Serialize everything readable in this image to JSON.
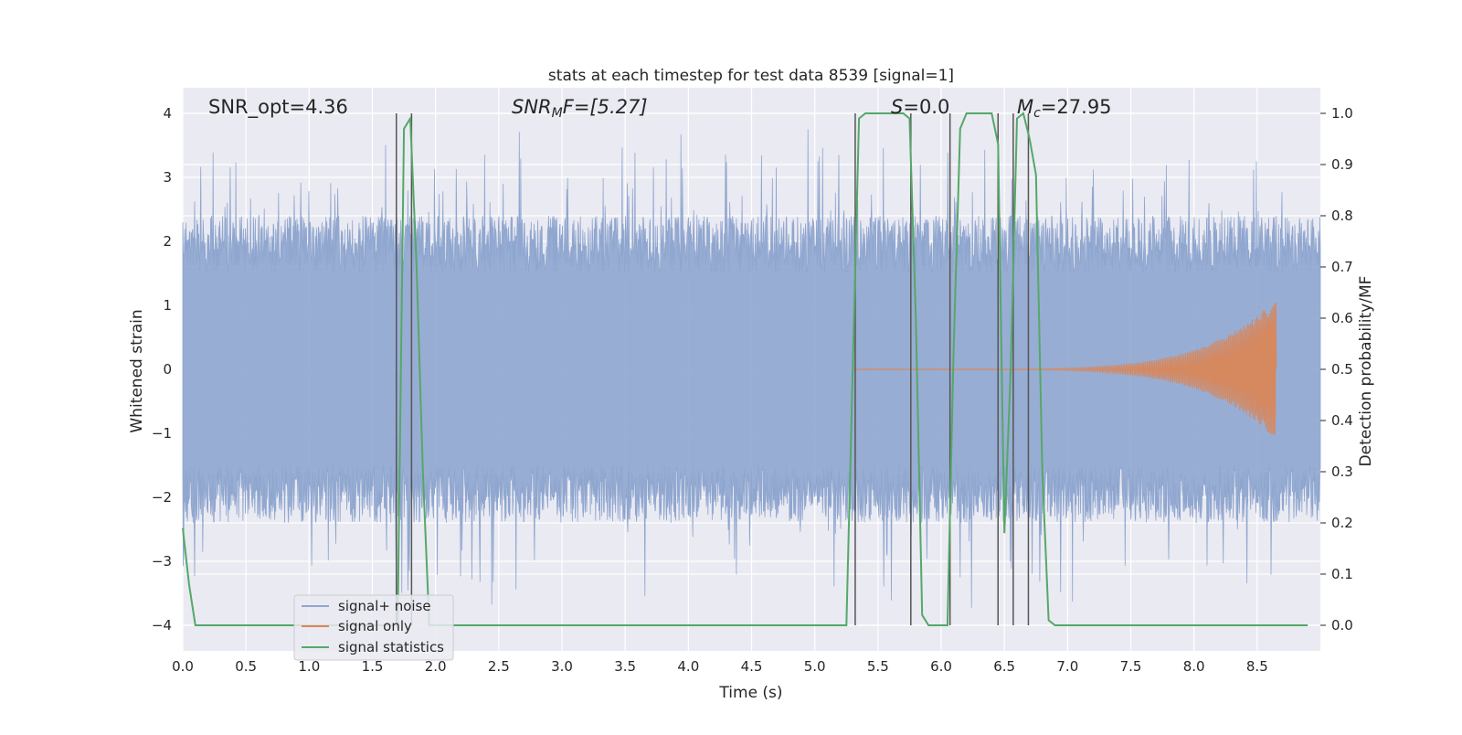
{
  "chart_data": {
    "type": "line",
    "title": "stats at each timestep for test data 8539 [signal=1]",
    "xlabel": "Time (s)",
    "ylabel_left": "Whitened strain",
    "ylabel_right": "Detection probability/MF",
    "xlim": [
      0.0,
      9.0
    ],
    "ylim_left": [
      -4.4,
      4.4
    ],
    "ylim_right": [
      -0.05,
      1.05
    ],
    "x_ticks": [
      "0.0",
      "0.5",
      "1.0",
      "1.5",
      "2.0",
      "2.5",
      "3.0",
      "3.5",
      "4.0",
      "4.5",
      "5.0",
      "5.5",
      "6.0",
      "6.5",
      "7.0",
      "7.5",
      "8.0",
      "8.5"
    ],
    "y_left_ticks": [
      "4",
      "3",
      "2",
      "1",
      "0",
      "−1",
      "−2",
      "−3",
      "−4"
    ],
    "y_right_ticks": [
      "1.0",
      "0.9",
      "0.8",
      "0.7",
      "0.6",
      "0.5",
      "0.4",
      "0.3",
      "0.2",
      "0.1",
      "0.0"
    ],
    "grid": true,
    "legend_position": "lower-left",
    "annotations": {
      "snr_opt": "SNR_opt=4.36",
      "snr_mf_prefix": "SNR",
      "snr_mf_sub": "M",
      "snr_mf_suffix": "F=[5.27]",
      "s_symbol": "S",
      "s_value": "=0.0",
      "mc_symbol": "M",
      "mc_sub": "c",
      "mc_value": "=27.95"
    },
    "series": [
      {
        "name": "signal+ noise",
        "color": "#8fa6cf",
        "style": "noise band, roughly between -2.3 and 2.4 with spikes up to about 4 and down to -4"
      },
      {
        "name": "signal only",
        "color": "#dd8452",
        "chirp": {
          "start": 5.3,
          "peak": 8.65,
          "max_amplitude": 1.1
        }
      },
      {
        "name": "signal statistics",
        "color": "#55a868",
        "axis": "right",
        "x": [
          0.0,
          0.05,
          0.1,
          0.5,
          1.0,
          1.5,
          1.6,
          1.65,
          1.7,
          1.75,
          1.8,
          1.85,
          1.9,
          1.95,
          2.0,
          2.5,
          3.0,
          3.5,
          4.0,
          4.5,
          5.0,
          5.2,
          5.25,
          5.3,
          5.35,
          5.4,
          5.5,
          5.6,
          5.7,
          5.75,
          5.8,
          5.85,
          5.9,
          6.0,
          6.05,
          6.1,
          6.15,
          6.2,
          6.3,
          6.4,
          6.45,
          6.5,
          6.55,
          6.6,
          6.65,
          6.7,
          6.75,
          6.8,
          6.85,
          6.9,
          7.0,
          7.5,
          8.0,
          8.5,
          8.9
        ],
        "y": [
          0.19,
          0.08,
          0.0,
          0.0,
          0.0,
          0.0,
          0.0,
          0.0,
          0.0,
          0.97,
          0.99,
          0.7,
          0.3,
          0.0,
          0.0,
          0.0,
          0.0,
          0.0,
          0.0,
          0.0,
          0.0,
          0.0,
          0.0,
          0.5,
          0.99,
          1.0,
          1.0,
          1.0,
          1.0,
          0.99,
          0.6,
          0.02,
          0.0,
          0.0,
          0.0,
          0.55,
          0.97,
          1.0,
          1.0,
          1.0,
          0.94,
          0.18,
          0.5,
          0.99,
          1.0,
          0.95,
          0.88,
          0.3,
          0.01,
          0.0,
          0.0,
          0.0,
          0.0,
          0.0,
          0.0
        ]
      }
    ],
    "vlines": [
      1.69,
      1.81,
      5.32,
      5.76,
      6.07,
      6.45,
      6.57,
      6.69
    ]
  }
}
